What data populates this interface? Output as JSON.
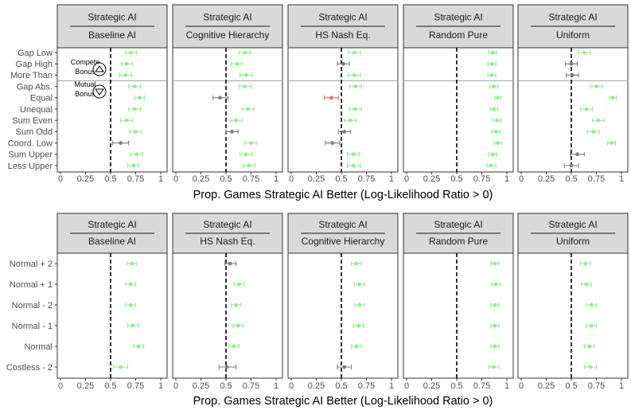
{
  "chart_data": [
    {
      "type": "dot-errorbar",
      "xlabel": "Prop. Games Strategic AI Better (Log-Likelihood Ratio > 0)",
      "xlim": [
        0,
        1
      ],
      "xticks": [
        "0",
        "0.25",
        "0.5",
        "0.75",
        "1"
      ],
      "reference_line": 0.5,
      "categories": [
        "Gap Low",
        "Gap High",
        "More Than",
        "Gap Abs.",
        "Equal",
        "Unequal",
        "Sum Even",
        "Sum Odd",
        "Coord. Low",
        "Sum Upper",
        "Less Upper"
      ],
      "separator_after_index": 2,
      "annotations": [
        {
          "label": "Compete",
          "label2": "Bonus",
          "icon": "triangle-up-icon"
        },
        {
          "label": "Mutual",
          "label2": "Bonus",
          "icon": "triangle-down-icon"
        }
      ],
      "colors": {
        "better": "#90ee90",
        "worse": "#f26b6b",
        "ns": "#7f7f7f"
      },
      "panels": [
        {
          "strip_top": "Strategic AI",
          "strip_bottom": "Baseline AI",
          "points": [
            {
              "value": 0.7,
              "lo": 0.65,
              "hi": 0.76,
              "status": "better"
            },
            {
              "value": 0.66,
              "lo": 0.61,
              "hi": 0.72,
              "status": "better"
            },
            {
              "value": 0.65,
              "lo": 0.59,
              "hi": 0.71,
              "status": "better"
            },
            {
              "value": 0.74,
              "lo": 0.68,
              "hi": 0.8,
              "status": "better"
            },
            {
              "value": 0.79,
              "lo": 0.74,
              "hi": 0.84,
              "status": "better"
            },
            {
              "value": 0.74,
              "lo": 0.68,
              "hi": 0.8,
              "status": "better"
            },
            {
              "value": 0.66,
              "lo": 0.6,
              "hi": 0.72,
              "status": "better"
            },
            {
              "value": 0.75,
              "lo": 0.69,
              "hi": 0.81,
              "status": "better"
            },
            {
              "value": 0.6,
              "lo": 0.52,
              "hi": 0.68,
              "status": "ns"
            },
            {
              "value": 0.76,
              "lo": 0.7,
              "hi": 0.82,
              "status": "better"
            },
            {
              "value": 0.73,
              "lo": 0.67,
              "hi": 0.78,
              "status": "better"
            }
          ]
        },
        {
          "strip_top": "Strategic AI",
          "strip_bottom": "Cognitive Hierarchy",
          "points": [
            {
              "value": 0.69,
              "lo": 0.63,
              "hi": 0.74,
              "status": "better"
            },
            {
              "value": 0.61,
              "lo": 0.55,
              "hi": 0.66,
              "status": "better"
            },
            {
              "value": 0.7,
              "lo": 0.64,
              "hi": 0.76,
              "status": "better"
            },
            {
              "value": 0.69,
              "lo": 0.63,
              "hi": 0.75,
              "status": "better"
            },
            {
              "value": 0.44,
              "lo": 0.37,
              "hi": 0.52,
              "status": "ns"
            },
            {
              "value": 0.72,
              "lo": 0.66,
              "hi": 0.78,
              "status": "better"
            },
            {
              "value": 0.6,
              "lo": 0.54,
              "hi": 0.66,
              "status": "better"
            },
            {
              "value": 0.56,
              "lo": 0.5,
              "hi": 0.62,
              "status": "ns"
            },
            {
              "value": 0.75,
              "lo": 0.69,
              "hi": 0.81,
              "status": "better"
            },
            {
              "value": 0.7,
              "lo": 0.64,
              "hi": 0.76,
              "status": "better"
            },
            {
              "value": 0.73,
              "lo": 0.67,
              "hi": 0.79,
              "status": "better"
            }
          ]
        },
        {
          "strip_top": "Strategic AI",
          "strip_bottom": "HS Nash Eq.",
          "points": [
            {
              "value": 0.63,
              "lo": 0.57,
              "hi": 0.69,
              "status": "better"
            },
            {
              "value": 0.52,
              "lo": 0.46,
              "hi": 0.58,
              "status": "ns"
            },
            {
              "value": 0.63,
              "lo": 0.57,
              "hi": 0.69,
              "status": "better"
            },
            {
              "value": 0.64,
              "lo": 0.58,
              "hi": 0.7,
              "status": "better"
            },
            {
              "value": 0.4,
              "lo": 0.33,
              "hi": 0.47,
              "status": "worse"
            },
            {
              "value": 0.64,
              "lo": 0.58,
              "hi": 0.7,
              "status": "better"
            },
            {
              "value": 0.59,
              "lo": 0.53,
              "hi": 0.65,
              "status": "better"
            },
            {
              "value": 0.53,
              "lo": 0.47,
              "hi": 0.59,
              "status": "ns"
            },
            {
              "value": 0.41,
              "lo": 0.34,
              "hi": 0.48,
              "status": "ns"
            },
            {
              "value": 0.62,
              "lo": 0.56,
              "hi": 0.68,
              "status": "better"
            },
            {
              "value": 0.62,
              "lo": 0.56,
              "hi": 0.69,
              "status": "better"
            }
          ]
        },
        {
          "strip_top": "Strategic AI",
          "strip_bottom": "Random Pure",
          "points": [
            {
              "value": 0.86,
              "lo": 0.82,
              "hi": 0.9,
              "status": "better"
            },
            {
              "value": 0.85,
              "lo": 0.81,
              "hi": 0.89,
              "status": "better"
            },
            {
              "value": 0.85,
              "lo": 0.81,
              "hi": 0.89,
              "status": "better"
            },
            {
              "value": 0.87,
              "lo": 0.83,
              "hi": 0.91,
              "status": "better"
            },
            {
              "value": 0.91,
              "lo": 0.88,
              "hi": 0.94,
              "status": "better"
            },
            {
              "value": 0.87,
              "lo": 0.83,
              "hi": 0.91,
              "status": "better"
            },
            {
              "value": 0.9,
              "lo": 0.86,
              "hi": 0.94,
              "status": "better"
            },
            {
              "value": 0.89,
              "lo": 0.85,
              "hi": 0.93,
              "status": "better"
            },
            {
              "value": 0.91,
              "lo": 0.87,
              "hi": 0.95,
              "status": "better"
            },
            {
              "value": 0.86,
              "lo": 0.82,
              "hi": 0.9,
              "status": "better"
            },
            {
              "value": 0.84,
              "lo": 0.8,
              "hi": 0.89,
              "status": "better"
            }
          ]
        },
        {
          "strip_top": "Strategic AI",
          "strip_bottom": "Uniform",
          "points": [
            {
              "value": 0.63,
              "lo": 0.57,
              "hi": 0.69,
              "status": "better"
            },
            {
              "value": 0.5,
              "lo": 0.44,
              "hi": 0.56,
              "status": "ns"
            },
            {
              "value": 0.51,
              "lo": 0.45,
              "hi": 0.57,
              "status": "ns"
            },
            {
              "value": 0.75,
              "lo": 0.69,
              "hi": 0.81,
              "status": "better"
            },
            {
              "value": 0.91,
              "lo": 0.88,
              "hi": 0.95,
              "status": "better"
            },
            {
              "value": 0.65,
              "lo": 0.59,
              "hi": 0.71,
              "status": "better"
            },
            {
              "value": 0.77,
              "lo": 0.71,
              "hi": 0.83,
              "status": "better"
            },
            {
              "value": 0.72,
              "lo": 0.66,
              "hi": 0.78,
              "status": "better"
            },
            {
              "value": 0.9,
              "lo": 0.86,
              "hi": 0.94,
              "status": "better"
            },
            {
              "value": 0.56,
              "lo": 0.49,
              "hi": 0.63,
              "status": "ns"
            },
            {
              "value": 0.5,
              "lo": 0.43,
              "hi": 0.57,
              "status": "ns"
            }
          ]
        }
      ]
    },
    {
      "type": "dot-errorbar",
      "xlabel": "Prop. Games Strategic AI Better (Log-Likelihood Ratio > 0)",
      "xlim": [
        0,
        1
      ],
      "xticks": [
        "0",
        "0.25",
        "0.5",
        "0.75",
        "1"
      ],
      "reference_line": 0.5,
      "categories": [
        "Normal + 2",
        "Normal + 1",
        "Normal - 2",
        "Normal - 1",
        "Normal",
        "Costless - 2"
      ],
      "colors": {
        "better": "#90ee90",
        "worse": "#f26b6b",
        "ns": "#7f7f7f"
      },
      "panels": [
        {
          "strip_top": "Strategic AI",
          "strip_bottom": "Baseline AI",
          "points": [
            {
              "value": 0.71,
              "lo": 0.66,
              "hi": 0.76,
              "status": "better"
            },
            {
              "value": 0.7,
              "lo": 0.65,
              "hi": 0.75,
              "status": "better"
            },
            {
              "value": 0.7,
              "lo": 0.65,
              "hi": 0.75,
              "status": "better"
            },
            {
              "value": 0.72,
              "lo": 0.67,
              "hi": 0.78,
              "status": "better"
            },
            {
              "value": 0.78,
              "lo": 0.73,
              "hi": 0.83,
              "status": "better"
            },
            {
              "value": 0.6,
              "lo": 0.53,
              "hi": 0.67,
              "status": "better"
            }
          ]
        },
        {
          "strip_top": "Strategic AI",
          "strip_bottom": "HS Nash Eq.",
          "points": [
            {
              "value": 0.54,
              "lo": 0.49,
              "hi": 0.6,
              "status": "ns"
            },
            {
              "value": 0.63,
              "lo": 0.58,
              "hi": 0.68,
              "status": "better"
            },
            {
              "value": 0.6,
              "lo": 0.55,
              "hi": 0.65,
              "status": "better"
            },
            {
              "value": 0.62,
              "lo": 0.57,
              "hi": 0.67,
              "status": "better"
            },
            {
              "value": 0.58,
              "lo": 0.53,
              "hi": 0.63,
              "status": "better"
            },
            {
              "value": 0.51,
              "lo": 0.43,
              "hi": 0.6,
              "status": "ns"
            }
          ]
        },
        {
          "strip_top": "Strategic AI",
          "strip_bottom": "Cognitive Hierarchy",
          "points": [
            {
              "value": 0.65,
              "lo": 0.6,
              "hi": 0.7,
              "status": "better"
            },
            {
              "value": 0.68,
              "lo": 0.63,
              "hi": 0.73,
              "status": "better"
            },
            {
              "value": 0.68,
              "lo": 0.63,
              "hi": 0.73,
              "status": "better"
            },
            {
              "value": 0.67,
              "lo": 0.62,
              "hi": 0.72,
              "status": "better"
            },
            {
              "value": 0.65,
              "lo": 0.6,
              "hi": 0.7,
              "status": "better"
            },
            {
              "value": 0.53,
              "lo": 0.46,
              "hi": 0.6,
              "status": "ns"
            }
          ]
        },
        {
          "strip_top": "Strategic AI",
          "strip_bottom": "Random Pure",
          "points": [
            {
              "value": 0.88,
              "lo": 0.84,
              "hi": 0.92,
              "status": "better"
            },
            {
              "value": 0.89,
              "lo": 0.85,
              "hi": 0.93,
              "status": "better"
            },
            {
              "value": 0.88,
              "lo": 0.84,
              "hi": 0.92,
              "status": "better"
            },
            {
              "value": 0.88,
              "lo": 0.84,
              "hi": 0.92,
              "status": "better"
            },
            {
              "value": 0.88,
              "lo": 0.84,
              "hi": 0.92,
              "status": "better"
            },
            {
              "value": 0.87,
              "lo": 0.82,
              "hi": 0.92,
              "status": "better"
            }
          ]
        },
        {
          "strip_top": "Strategic AI",
          "strip_bottom": "Uniform",
          "points": [
            {
              "value": 0.64,
              "lo": 0.59,
              "hi": 0.69,
              "status": "better"
            },
            {
              "value": 0.65,
              "lo": 0.6,
              "hi": 0.7,
              "status": "better"
            },
            {
              "value": 0.7,
              "lo": 0.65,
              "hi": 0.75,
              "status": "better"
            },
            {
              "value": 0.7,
              "lo": 0.65,
              "hi": 0.75,
              "status": "better"
            },
            {
              "value": 0.68,
              "lo": 0.63,
              "hi": 0.73,
              "status": "better"
            },
            {
              "value": 0.69,
              "lo": 0.63,
              "hi": 0.75,
              "status": "better"
            }
          ]
        }
      ]
    }
  ]
}
